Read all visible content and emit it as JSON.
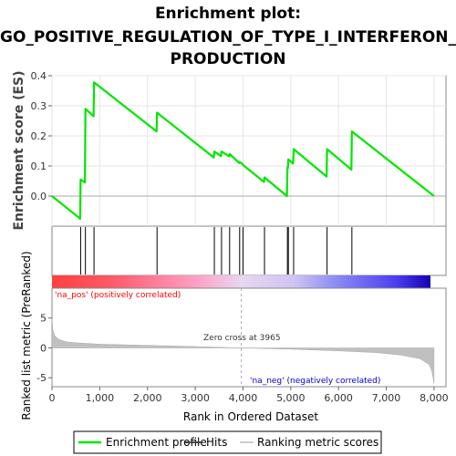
{
  "chart_data": {
    "type": "line",
    "title_lines": [
      "Enrichment plot:",
      "GO_POSITIVE_REGULATION_OF_TYPE_I_INTERFERON_",
      "PRODUCTION"
    ],
    "xlabel": "Rank in Ordered Dataset",
    "ylabel_top": "Enrichment score (ES)",
    "ylabel_bottom": "Ranked list metric (PreRanked)",
    "xlim": [
      0,
      8250
    ],
    "es_ylim": [
      -0.1,
      0.4
    ],
    "metric_ylim": [
      -6.5,
      10
    ],
    "x_ticks": [
      0,
      1000,
      2000,
      3000,
      4000,
      5000,
      6000,
      7000,
      8000
    ],
    "x_tick_labels": [
      "0",
      "1,000",
      "2,000",
      "3,000",
      "4,000",
      "5,000",
      "6,000",
      "7,000",
      "8,000"
    ],
    "es_ticks": [
      0.0,
      0.1,
      0.2,
      0.3,
      0.4
    ],
    "es_tick_labels": [
      "0.0",
      "0.1",
      "0.2",
      "0.3",
      "0.4"
    ],
    "metric_ticks": [
      -5,
      0,
      5
    ],
    "metric_tick_labels": [
      "-5",
      "0",
      "5"
    ],
    "hits": [
      600,
      700,
      880,
      2200,
      3400,
      3550,
      3720,
      3930,
      4000,
      4450,
      4930,
      4950,
      5060,
      5760,
      6280
    ],
    "enrichment_profile": [
      [
        0,
        0.0
      ],
      [
        590,
        -0.075
      ],
      [
        600,
        0.055
      ],
      [
        690,
        0.045
      ],
      [
        700,
        0.29
      ],
      [
        870,
        0.265
      ],
      [
        880,
        0.378
      ],
      [
        2190,
        0.215
      ],
      [
        2200,
        0.277
      ],
      [
        3390,
        0.128
      ],
      [
        3400,
        0.148
      ],
      [
        3540,
        0.133
      ],
      [
        3550,
        0.148
      ],
      [
        3710,
        0.132
      ],
      [
        3720,
        0.14
      ],
      [
        3920,
        0.11
      ],
      [
        3930,
        0.113
      ],
      [
        3990,
        0.107
      ],
      [
        4000,
        0.103
      ],
      [
        4440,
        0.047
      ],
      [
        4450,
        0.062
      ],
      [
        4920,
        0.0
      ],
      [
        4930,
        0.095
      ],
      [
        4940,
        0.093
      ],
      [
        4950,
        0.122
      ],
      [
        5050,
        0.108
      ],
      [
        5060,
        0.156
      ],
      [
        5750,
        0.065
      ],
      [
        5760,
        0.156
      ],
      [
        6270,
        0.088
      ],
      [
        6280,
        0.215
      ],
      [
        8000,
        0.0
      ]
    ],
    "ranked_metric": [
      [
        0,
        5.0
      ],
      [
        20,
        3.0
      ],
      [
        60,
        2.0
      ],
      [
        150,
        1.4
      ],
      [
        300,
        1.0
      ],
      [
        600,
        0.8
      ],
      [
        1000,
        0.62
      ],
      [
        2000,
        0.42
      ],
      [
        3000,
        0.22
      ],
      [
        3965,
        0.0
      ],
      [
        5000,
        -0.22
      ],
      [
        6000,
        -0.5
      ],
      [
        6800,
        -0.8
      ],
      [
        7300,
        -1.2
      ],
      [
        7700,
        -1.8
      ],
      [
        7900,
        -2.8
      ],
      [
        7950,
        -3.8
      ],
      [
        7980,
        -5.0
      ],
      [
        8000,
        -6.0
      ]
    ],
    "zero_cross_rank": 3965,
    "annotations": {
      "zero_cross": "Zero cross at 3965",
      "pos": "'na_pos' (positively correlated)",
      "neg": "'na_neg' (negatively correlated)"
    },
    "legend": {
      "placement": "bottom",
      "items": [
        "Enrichment profile",
        "Hits",
        "Ranking metric scores"
      ]
    },
    "colors": {
      "profile": "#00e600",
      "hits": "#000000",
      "metric_fill": "#c0c0c0",
      "pos_label": "#ff0000",
      "neg_label": "#0000cc"
    },
    "heatmap_stops": [
      {
        "pos": 0.0,
        "color": "#ff4040"
      },
      {
        "pos": 0.16,
        "color": "#ff5a6a"
      },
      {
        "pos": 0.38,
        "color": "#ff9fc4"
      },
      {
        "pos": 0.5,
        "color": "#e8d6f0"
      },
      {
        "pos": 0.64,
        "color": "#cfc3f4"
      },
      {
        "pos": 0.75,
        "color": "#8a8cf5"
      },
      {
        "pos": 0.91,
        "color": "#4a3ef0"
      },
      {
        "pos": 1.0,
        "color": "#1500b0"
      }
    ]
  }
}
